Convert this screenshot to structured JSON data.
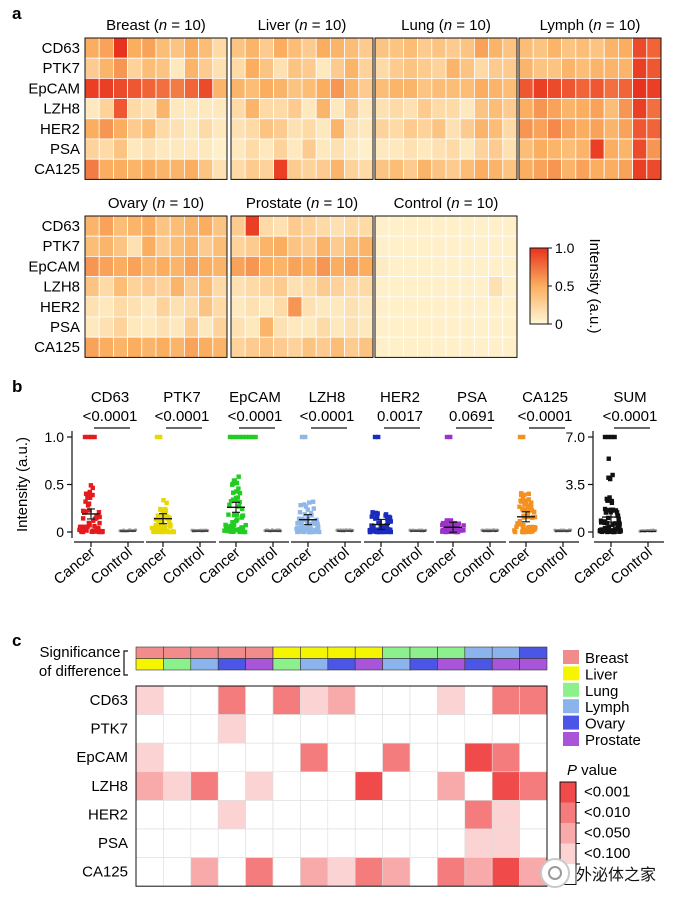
{
  "panel_a": {
    "label": "a",
    "markers": [
      "CD63",
      "PTK7",
      "EpCAM",
      "LZH8",
      "HER2",
      "PSA",
      "CA125"
    ],
    "groups": [
      {
        "title": "Breast (n = 10)",
        "grid": [
          [
            0.5,
            0.55,
            1.0,
            0.5,
            0.55,
            0.4,
            0.35,
            0.5,
            0.4,
            0.2
          ],
          [
            0.3,
            0.45,
            0.6,
            0.25,
            0.4,
            0.35,
            0.1,
            0.45,
            0.3,
            0.15
          ],
          [
            0.95,
            0.95,
            0.9,
            0.85,
            0.8,
            0.75,
            0.7,
            0.8,
            0.9,
            0.45
          ],
          [
            0.1,
            0.25,
            0.85,
            0.2,
            0.15,
            0.45,
            0.1,
            0.1,
            0.1,
            0.1
          ],
          [
            0.5,
            0.6,
            0.5,
            0.3,
            0.4,
            0.2,
            0.15,
            0.1,
            0.2,
            0.1
          ],
          [
            0.25,
            0.2,
            0.35,
            0.1,
            0.15,
            0.1,
            0.1,
            0.1,
            0.1,
            0.05
          ],
          [
            0.7,
            0.5,
            0.5,
            0.45,
            0.5,
            0.45,
            0.45,
            0.5,
            0.35,
            0.15
          ]
        ]
      },
      {
        "title": "Liver (n = 10)",
        "grid": [
          [
            0.35,
            0.45,
            0.3,
            0.5,
            0.4,
            0.3,
            0.5,
            0.45,
            0.4,
            0.3
          ],
          [
            0.2,
            0.5,
            0.35,
            0.15,
            0.35,
            0.3,
            0.1,
            0.3,
            0.45,
            0.25
          ],
          [
            0.45,
            0.4,
            0.5,
            0.45,
            0.35,
            0.4,
            0.5,
            0.6,
            0.45,
            0.3
          ],
          [
            0.2,
            0.45,
            0.2,
            0.2,
            0.3,
            0.1,
            0.45,
            0.1,
            0.3,
            0.1
          ],
          [
            0.15,
            0.2,
            0.35,
            0.3,
            0.15,
            0.2,
            0.1,
            0.45,
            0.15,
            0.1
          ],
          [
            0.1,
            0.2,
            0.1,
            0.25,
            0.1,
            0.3,
            0.1,
            0.15,
            0.1,
            0.05
          ],
          [
            0.2,
            0.3,
            0.25,
            0.95,
            0.3,
            0.25,
            0.3,
            0.45,
            0.25,
            0.2
          ]
        ]
      },
      {
        "title": "Lung (n = 10)",
        "grid": [
          [
            0.35,
            0.35,
            0.4,
            0.3,
            0.35,
            0.3,
            0.35,
            0.55,
            0.45,
            0.35
          ],
          [
            0.2,
            0.3,
            0.35,
            0.3,
            0.25,
            0.45,
            0.35,
            0.2,
            0.3,
            0.3
          ],
          [
            0.4,
            0.45,
            0.45,
            0.35,
            0.4,
            0.4,
            0.4,
            0.5,
            0.45,
            0.4
          ],
          [
            0.15,
            0.2,
            0.15,
            0.3,
            0.2,
            0.2,
            0.1,
            0.35,
            0.4,
            0.3
          ],
          [
            0.25,
            0.2,
            0.3,
            0.25,
            0.35,
            0.15,
            0.3,
            0.45,
            0.4,
            0.2
          ],
          [
            0.1,
            0.1,
            0.15,
            0.1,
            0.15,
            0.2,
            0.1,
            0.25,
            0.3,
            0.15
          ],
          [
            0.35,
            0.4,
            0.3,
            0.45,
            0.35,
            0.3,
            0.4,
            0.5,
            0.45,
            0.35
          ]
        ]
      },
      {
        "title": "Lymph (n = 10)",
        "grid": [
          [
            0.4,
            0.35,
            0.45,
            0.35,
            0.4,
            0.35,
            0.45,
            0.5,
            0.9,
            0.8
          ],
          [
            0.45,
            0.35,
            0.35,
            0.45,
            0.4,
            0.45,
            0.45,
            0.45,
            0.95,
            0.85
          ],
          [
            0.85,
            0.95,
            0.9,
            0.85,
            0.8,
            0.85,
            0.75,
            0.8,
            1.0,
            0.95
          ],
          [
            0.5,
            0.6,
            0.55,
            0.45,
            0.5,
            0.55,
            0.4,
            0.6,
            0.95,
            0.75
          ],
          [
            0.6,
            0.55,
            0.65,
            0.55,
            0.5,
            0.55,
            0.45,
            0.55,
            0.85,
            0.8
          ],
          [
            0.4,
            0.5,
            0.45,
            0.4,
            0.45,
            0.95,
            0.5,
            0.45,
            0.9,
            0.6
          ],
          [
            0.5,
            0.55,
            0.6,
            0.45,
            0.55,
            0.5,
            0.5,
            0.55,
            0.95,
            0.9
          ]
        ]
      },
      {
        "title": "Ovary (n = 10)",
        "grid": [
          [
            0.45,
            0.55,
            0.4,
            0.45,
            0.5,
            0.35,
            0.4,
            0.45,
            0.5,
            0.35
          ],
          [
            0.4,
            0.45,
            0.35,
            0.15,
            0.5,
            0.3,
            0.4,
            0.45,
            0.3,
            0.4
          ],
          [
            0.6,
            0.55,
            0.5,
            0.55,
            0.45,
            0.5,
            0.45,
            0.55,
            0.5,
            0.45
          ],
          [
            0.35,
            0.2,
            0.4,
            0.25,
            0.3,
            0.25,
            0.45,
            0.3,
            0.4,
            0.2
          ],
          [
            0.15,
            0.1,
            0.2,
            0.15,
            0.1,
            0.25,
            0.15,
            0.2,
            0.35,
            0.2
          ],
          [
            0.1,
            0.15,
            0.25,
            0.1,
            0.1,
            0.15,
            0.1,
            0.3,
            0.1,
            0.25
          ],
          [
            0.55,
            0.5,
            0.45,
            0.5,
            0.45,
            0.5,
            0.45,
            0.55,
            0.5,
            0.45
          ]
        ]
      },
      {
        "title": "Prostate (n = 10)",
        "grid": [
          [
            0.3,
            0.95,
            0.2,
            0.15,
            0.3,
            0.25,
            0.2,
            0.15,
            0.2,
            0.2
          ],
          [
            0.25,
            0.3,
            0.45,
            0.5,
            0.35,
            0.3,
            0.45,
            0.3,
            0.4,
            0.45
          ],
          [
            0.55,
            0.6,
            0.5,
            0.45,
            0.55,
            0.5,
            0.6,
            0.5,
            0.55,
            0.5
          ],
          [
            0.15,
            0.2,
            0.25,
            0.3,
            0.15,
            0.2,
            0.3,
            0.25,
            0.2,
            0.2
          ],
          [
            0.1,
            0.15,
            0.1,
            0.2,
            0.6,
            0.15,
            0.1,
            0.1,
            0.15,
            0.1
          ],
          [
            0.15,
            0.1,
            0.45,
            0.15,
            0.1,
            0.1,
            0.2,
            0.1,
            0.15,
            0.1
          ],
          [
            0.25,
            0.3,
            0.35,
            0.3,
            0.25,
            0.35,
            0.3,
            0.4,
            0.3,
            0.35
          ]
        ]
      },
      {
        "title": "Control (n = 10)",
        "grid": [
          [
            0.05,
            0.05,
            0.05,
            0.05,
            0.05,
            0.05,
            0.05,
            0.05,
            0.05,
            0.05
          ],
          [
            0.05,
            0.05,
            0.05,
            0.05,
            0.05,
            0.05,
            0.05,
            0.05,
            0.05,
            0.05
          ],
          [
            0.08,
            0.05,
            0.05,
            0.05,
            0.05,
            0.05,
            0.05,
            0.05,
            0.05,
            0.05
          ],
          [
            0.05,
            0.05,
            0.05,
            0.05,
            0.05,
            0.05,
            0.05,
            0.05,
            0.15,
            0.05
          ],
          [
            0.05,
            0.05,
            0.05,
            0.05,
            0.05,
            0.05,
            0.05,
            0.05,
            0.05,
            0.05
          ],
          [
            0.05,
            0.05,
            0.05,
            0.05,
            0.05,
            0.05,
            0.05,
            0.05,
            0.05,
            0.05
          ],
          [
            0.05,
            0.05,
            0.05,
            0.05,
            0.05,
            0.05,
            0.05,
            0.05,
            0.05,
            0.05
          ]
        ]
      }
    ],
    "colorbar": {
      "label": "Intensity (a.u.)",
      "ticks": [
        "1.0",
        "0.5",
        "0"
      ],
      "low": "#fff7d6",
      "mid": "#fbae5f",
      "high": "#e8321e"
    }
  },
  "chart_data": {
    "type": "scatter",
    "panel_label": "b",
    "ylabel": "Intensity (a.u.)",
    "ylim": [
      0,
      1.0
    ],
    "yticks": [
      "0",
      "0.5",
      "1.0"
    ],
    "categories": [
      "Cancer",
      "Control"
    ],
    "series": [
      {
        "name": "CD63",
        "p": "<0.0001",
        "color": "#e41a1c",
        "cancer_mean": 0.19,
        "control_mean": 0.01
      },
      {
        "name": "PTK7",
        "p": "<0.0001",
        "color": "#e6d800",
        "cancer_mean": 0.14,
        "control_mean": 0.01
      },
      {
        "name": "EpCAM",
        "p": "<0.0001",
        "color": "#22cc22",
        "cancer_mean": 0.26,
        "control_mean": 0.01
      },
      {
        "name": "LZH8",
        "p": "<0.0001",
        "color": "#8fb8e8",
        "cancer_mean": 0.13,
        "control_mean": 0.01
      },
      {
        "name": "HER2",
        "p": "0.0017",
        "color": "#1a2bbf",
        "cancer_mean": 0.08,
        "control_mean": 0.01
      },
      {
        "name": "PSA",
        "p": "0.0691",
        "color": "#9b33c9",
        "cancer_mean": 0.05,
        "control_mean": 0.01
      },
      {
        "name": "CA125",
        "p": "<0.0001",
        "color": "#f39020",
        "cancer_mean": 0.16,
        "control_mean": 0.01
      }
    ],
    "sum": {
      "name": "SUM",
      "p": "<0.0001",
      "color": "#111111",
      "yticks": [
        "0",
        "3.5",
        "7.0"
      ],
      "ylim": [
        0,
        7.0
      ],
      "cancer_mean": 1.1,
      "control_mean": 0.05
    }
  },
  "panel_c": {
    "label": "c",
    "sig_label_line1": "Significance",
    "sig_label_line2": "of difference",
    "markers": [
      "CD63",
      "PTK7",
      "EpCAM",
      "LZH8",
      "HER2",
      "PSA",
      "CA125"
    ],
    "top_row": [
      "Breast",
      "Breast",
      "Breast",
      "Breast",
      "Breast",
      "Liver",
      "Liver",
      "Liver",
      "Liver",
      "Lung",
      "Lung",
      "Lung",
      "Lymph",
      "Lymph",
      "Ovary"
    ],
    "bottom_row": [
      "Liver",
      "Lung",
      "Lymph",
      "Ovary",
      "Prostate",
      "Lung",
      "Lymph",
      "Ovary",
      "Prostate",
      "Lymph",
      "Ovary",
      "Prostate",
      "Ovary",
      "Prostate",
      "Prostate"
    ],
    "legend": [
      {
        "name": "Breast",
        "color": "#f28b8b"
      },
      {
        "name": "Liver",
        "color": "#f5f500"
      },
      {
        "name": "Lung",
        "color": "#8cf08c"
      },
      {
        "name": "Lymph",
        "color": "#8cb4ec"
      },
      {
        "name": "Ovary",
        "color": "#4b55e6"
      },
      {
        "name": "Prostate",
        "color": "#a855d9"
      }
    ],
    "p_legend_title_italic": "P",
    "p_legend_title_rest": " value",
    "p_levels": [
      {
        "label": "<0.001",
        "color": "#f04a4a"
      },
      {
        "label": "<0.010",
        "color": "#f57c7c"
      },
      {
        "label": "<0.050",
        "color": "#f8aaaa"
      },
      {
        "label": "<0.100",
        "color": "#fbd3d3"
      },
      {
        "label": "",
        "color": "#ffffff"
      }
    ],
    "grid": [
      [
        3,
        4,
        4,
        1,
        4,
        1,
        3,
        2,
        4,
        4,
        4,
        3,
        4,
        1,
        1
      ],
      [
        4,
        4,
        4,
        3,
        4,
        4,
        4,
        4,
        4,
        4,
        4,
        4,
        4,
        4,
        4
      ],
      [
        3,
        4,
        4,
        4,
        4,
        4,
        1,
        4,
        4,
        1,
        4,
        4,
        0,
        1,
        4
      ],
      [
        2,
        3,
        1,
        4,
        3,
        4,
        4,
        4,
        0,
        4,
        4,
        2,
        4,
        0,
        1
      ],
      [
        4,
        4,
        4,
        3,
        4,
        4,
        4,
        4,
        4,
        4,
        4,
        4,
        1,
        3,
        4
      ],
      [
        4,
        4,
        4,
        4,
        4,
        4,
        4,
        4,
        4,
        4,
        4,
        4,
        3,
        3,
        4
      ],
      [
        4,
        4,
        2,
        4,
        1,
        4,
        2,
        3,
        1,
        2,
        4,
        1,
        2,
        0,
        2
      ]
    ]
  },
  "watermark_text": "外泌体之家"
}
